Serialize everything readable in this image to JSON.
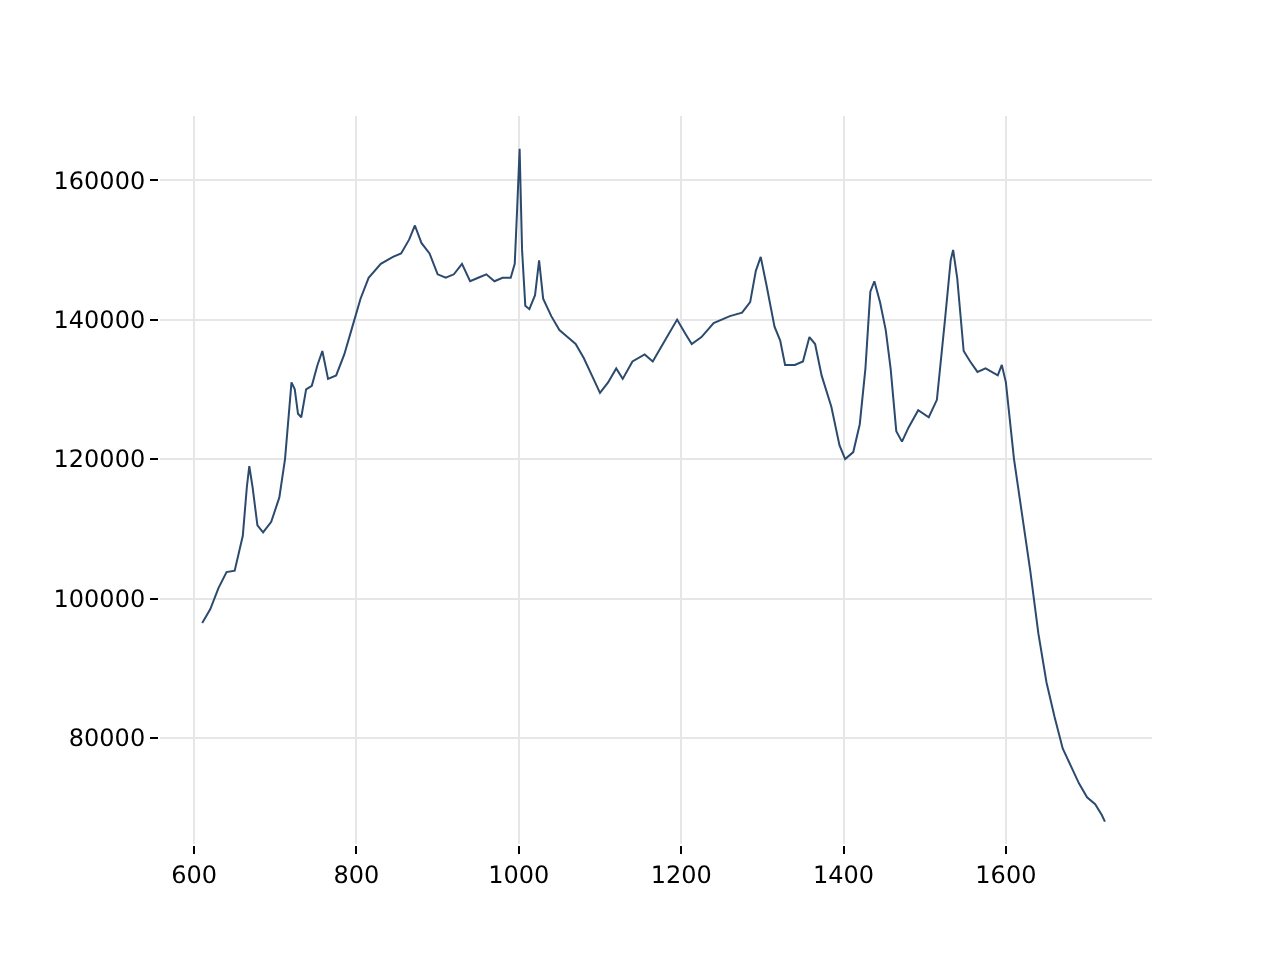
{
  "chart_data": {
    "type": "line",
    "xlim": [
      558,
      1780
    ],
    "ylim": [
      64800,
      169200
    ],
    "xticks": [
      600,
      800,
      1000,
      1200,
      1400,
      1600
    ],
    "yticks": [
      80000,
      100000,
      120000,
      140000,
      160000
    ],
    "grid": true,
    "marker": "none",
    "line_style": "solid",
    "series": [
      {
        "color": "#2b4a6e",
        "x": [
          610,
          620,
          630,
          640,
          650,
          660,
          665,
          668,
          672,
          678,
          685,
          695,
          705,
          712,
          720,
          724,
          728,
          732,
          738,
          745,
          752,
          758,
          765,
          775,
          785,
          795,
          805,
          815,
          830,
          845,
          855,
          865,
          872,
          880,
          890,
          900,
          910,
          920,
          930,
          940,
          950,
          960,
          970,
          980,
          990,
          995,
          998,
          1001,
          1004,
          1008,
          1013,
          1020,
          1025,
          1030,
          1040,
          1050,
          1060,
          1070,
          1080,
          1090,
          1100,
          1110,
          1120,
          1128,
          1140,
          1155,
          1165,
          1180,
          1195,
          1205,
          1213,
          1225,
          1240,
          1260,
          1275,
          1285,
          1292,
          1298,
          1305,
          1315,
          1322,
          1328,
          1340,
          1350,
          1358,
          1365,
          1373,
          1385,
          1395,
          1402,
          1412,
          1420,
          1427,
          1433,
          1438,
          1445,
          1452,
          1458,
          1465,
          1472,
          1480,
          1492,
          1505,
          1515,
          1525,
          1532,
          1535,
          1540,
          1548,
          1556,
          1565,
          1575,
          1590,
          1595,
          1600,
          1610,
          1620,
          1630,
          1640,
          1650,
          1660,
          1670,
          1680,
          1690,
          1700,
          1710,
          1718,
          1722
        ],
        "values": [
          96500,
          98500,
          101500,
          103800,
          104000,
          109000,
          116000,
          119000,
          116000,
          110500,
          109500,
          111000,
          114500,
          120000,
          131000,
          130000,
          126500,
          126000,
          130000,
          130500,
          133500,
          135500,
          131500,
          132000,
          135000,
          139000,
          143000,
          146000,
          148000,
          149000,
          149500,
          151500,
          153500,
          151000,
          149500,
          146500,
          146000,
          146500,
          148000,
          145500,
          146000,
          146500,
          145500,
          146000,
          146000,
          148000,
          156000,
          164500,
          150000,
          142000,
          141500,
          143500,
          148500,
          143000,
          140500,
          138500,
          137500,
          136500,
          134500,
          132000,
          129500,
          131000,
          133000,
          131500,
          134000,
          135000,
          134000,
          137000,
          140000,
          138000,
          136500,
          137500,
          139500,
          140500,
          141000,
          142500,
          147000,
          149000,
          145000,
          139000,
          137000,
          133500,
          133500,
          134000,
          137500,
          136500,
          132000,
          127500,
          122000,
          120000,
          121000,
          125000,
          133000,
          144000,
          145500,
          142500,
          138500,
          133000,
          124000,
          122500,
          124500,
          127000,
          126000,
          128500,
          140000,
          148500,
          150000,
          146000,
          135500,
          134000,
          132500,
          133000,
          132000,
          133500,
          131000,
          120000,
          112000,
          104000,
          95000,
          88000,
          83000,
          78500,
          76000,
          73500,
          71500,
          70500,
          69000,
          68000
        ]
      }
    ]
  }
}
